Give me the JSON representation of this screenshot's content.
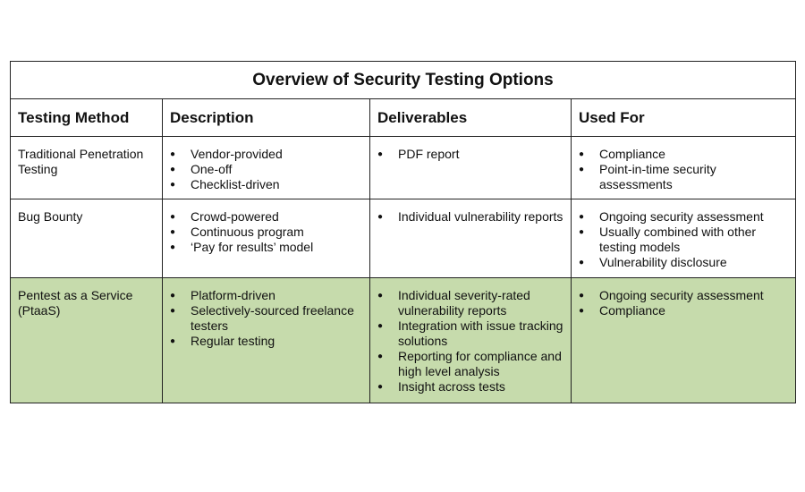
{
  "title": "Overview of Security Testing Options",
  "headers": [
    "Testing Method",
    "Description",
    "Deliverables",
    "Used For"
  ],
  "rows": [
    {
      "method": "Traditional Penetration Testing",
      "description": [
        "Vendor-provided",
        "One-off",
        "Checklist-driven"
      ],
      "deliverables": [
        "PDF report"
      ],
      "used_for": [
        "Compliance",
        "Point-in-time security assessments"
      ]
    },
    {
      "method": "Bug Bounty",
      "description": [
        "Crowd-powered",
        "Continuous program",
        "‘Pay for results’ model"
      ],
      "deliverables": [
        "Individual vulnerability reports"
      ],
      "used_for": [
        "Ongoing security assessment",
        "Usually combined with other testing models",
        "Vulnerability disclosure"
      ]
    },
    {
      "method": "Pentest as a Service (PtaaS)",
      "description": [
        "Platform-driven",
        "Selectively-sourced freelance testers",
        "Regular testing"
      ],
      "deliverables": [
        "Individual severity-rated vulnerability reports",
        "Integration with issue tracking solutions",
        "Reporting for compliance and high level analysis",
        "Insight across tests"
      ],
      "used_for": [
        "Ongoing security assessment",
        "Compliance"
      ]
    }
  ],
  "colors": {
    "highlight_row": "#c6dbac",
    "border": "#222222"
  }
}
